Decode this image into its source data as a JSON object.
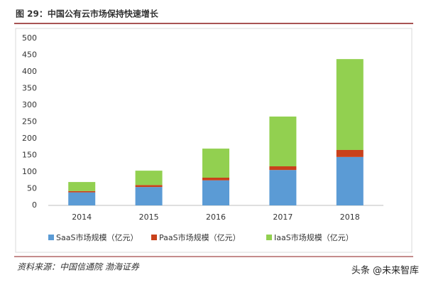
{
  "chart_data": {
    "type": "bar",
    "stacked": true,
    "title": "图 29：中国公有云市场保持快速增长",
    "categories": [
      "2014",
      "2015",
      "2016",
      "2017",
      "2018"
    ],
    "series": [
      {
        "name": "SaaS市场规模（亿元）",
        "color": "#5b9bd5",
        "values": [
          39,
          55,
          75,
          106,
          145
        ]
      },
      {
        "name": "PaaS市场规模（亿元）",
        "color": "#c9411b",
        "values": [
          4,
          6,
          8,
          11,
          21
        ]
      },
      {
        "name": "IaaS市场规模（亿元）",
        "color": "#92d050",
        "values": [
          27,
          43,
          87,
          149,
          272
        ]
      }
    ],
    "ylim": [
      0,
      500
    ],
    "yticks": [
      0,
      50,
      100,
      150,
      200,
      250,
      300,
      350,
      400,
      450,
      500
    ],
    "grid": false,
    "legend": "bottom",
    "source": "资料来源：中国信通院  渤海证券",
    "watermark": "头条 @未来智库"
  }
}
